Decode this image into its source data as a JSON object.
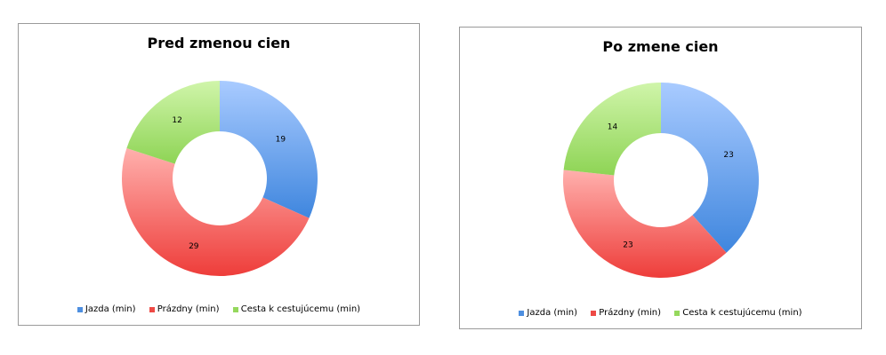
{
  "chart_data": [
    {
      "type": "pie",
      "variant": "donut",
      "title": "Pred zmenou cien",
      "categories": [
        "Jazda (min)",
        "Prázdny (min)",
        "Cesta k cestujúcemu (min)"
      ],
      "values": [
        19,
        29,
        12
      ],
      "legend": "bottom"
    },
    {
      "type": "pie",
      "variant": "donut",
      "title": "Po zmene cien",
      "categories": [
        "Jazda (min)",
        "Prázdny (min)",
        "Cesta k cestujúcemu (min)"
      ],
      "values": [
        23,
        23,
        14
      ],
      "legend": "bottom"
    }
  ],
  "colors": {
    "series": [
      {
        "light": "#a9cbff",
        "dark": "#3f86de"
      },
      {
        "light": "#ffb0ad",
        "dark": "#ee3d3a"
      },
      {
        "light": "#d0f5aa",
        "dark": "#8ed455"
      }
    ]
  }
}
